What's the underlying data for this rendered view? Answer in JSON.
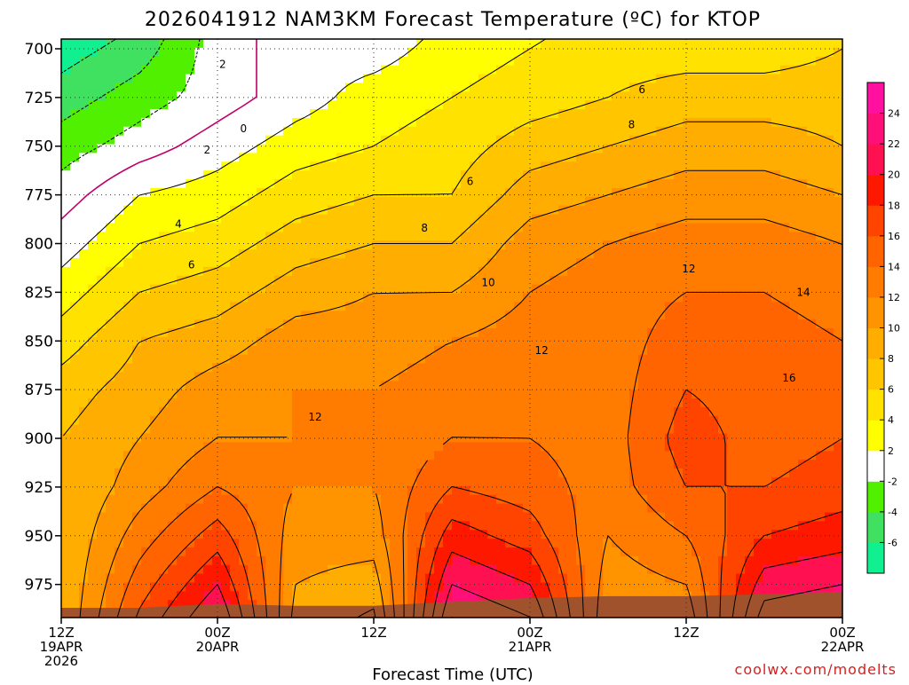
{
  "chart_data": {
    "type": "heatmap",
    "title": "2026041912 NAM3KM Forecast Temperature (ºC) for KTOP",
    "xlabel": "Forecast Time (UTC)",
    "credit": "coolwx.com/modelts",
    "y_ticks": [
      700,
      725,
      750,
      775,
      800,
      825,
      850,
      875,
      900,
      925,
      950,
      975
    ],
    "ylim": [
      695,
      992
    ],
    "y_inverted": true,
    "x_ticks": [
      {
        "hour": 0,
        "lines": [
          "12Z",
          "19APR",
          "2026"
        ]
      },
      {
        "hour": 12,
        "lines": [
          "00Z",
          "20APR"
        ]
      },
      {
        "hour": 24,
        "lines": [
          "12Z"
        ]
      },
      {
        "hour": 36,
        "lines": [
          "00Z",
          "21APR"
        ]
      },
      {
        "hour": 48,
        "lines": [
          "12Z"
        ]
      },
      {
        "hour": 60,
        "lines": [
          "00Z",
          "22APR"
        ]
      }
    ],
    "xlim": [
      0,
      60
    ],
    "grid": true,
    "colorbar_levels": [
      -8,
      -6,
      -4,
      -2,
      2,
      4,
      6,
      8,
      10,
      12,
      14,
      16,
      18,
      20,
      22,
      24,
      26
    ],
    "colorbar_labels": [
      "-6",
      "-4",
      "-2",
      "2",
      "4",
      "6",
      "8",
      "10",
      "12",
      "14",
      "16",
      "18",
      "20",
      "22",
      "24"
    ],
    "colorbar_colors": [
      "#10f090",
      "#40e060",
      "#50f000",
      "#ffffff",
      "#ffff00",
      "#ffe200",
      "#ffc600",
      "#ffad00",
      "#ff9400",
      "#ff7c00",
      "#ff6400",
      "#ff4400",
      "#ff1800",
      "#ff1050",
      "#ff1078",
      "#ff10a0"
    ],
    "contour_labels": [
      {
        "hour": 12.4,
        "p": 708,
        "text": "2"
      },
      {
        "hour": 14.0,
        "p": 741,
        "text": "0"
      },
      {
        "hour": 11.2,
        "p": 752,
        "text": "2"
      },
      {
        "hour": 9.0,
        "p": 790,
        "text": "4"
      },
      {
        "hour": 10.0,
        "p": 811,
        "text": "6"
      },
      {
        "hour": 44.6,
        "p": 721,
        "text": "6"
      },
      {
        "hour": 43.8,
        "p": 739,
        "text": "8"
      },
      {
        "hour": 31.4,
        "p": 768,
        "text": "6"
      },
      {
        "hour": 27.9,
        "p": 792,
        "text": "8"
      },
      {
        "hour": 32.8,
        "p": 820,
        "text": "10"
      },
      {
        "hour": 48.2,
        "p": 813,
        "text": "12"
      },
      {
        "hour": 36.9,
        "p": 855,
        "text": "12"
      },
      {
        "hour": 57.0,
        "p": 825,
        "text": "14"
      },
      {
        "hour": 55.9,
        "p": 869,
        "text": "16"
      },
      {
        "hour": 19.5,
        "p": 889,
        "text": "12"
      }
    ],
    "surface_pressure": [
      [
        0,
        987
      ],
      [
        6,
        987
      ],
      [
        12,
        985
      ],
      [
        18,
        986
      ],
      [
        24,
        986
      ],
      [
        30,
        984
      ],
      [
        36,
        982
      ],
      [
        42,
        981
      ],
      [
        48,
        981
      ],
      [
        54,
        980
      ],
      [
        60,
        979
      ]
    ],
    "temperature_profiles": [
      {
        "hour": 0,
        "levels": [
          [
            700,
            -7
          ],
          [
            725,
            -5
          ],
          [
            750,
            -3
          ],
          [
            775,
            -1
          ],
          [
            800,
            1
          ],
          [
            825,
            3
          ],
          [
            850,
            5
          ],
          [
            875,
            7
          ],
          [
            900,
            8
          ],
          [
            925,
            8
          ],
          [
            950,
            8
          ],
          [
            975,
            8
          ]
        ]
      },
      {
        "hour": 6,
        "levels": [
          [
            700,
            -5
          ],
          [
            725,
            -3
          ],
          [
            750,
            -1
          ],
          [
            775,
            2
          ],
          [
            800,
            4
          ],
          [
            825,
            6
          ],
          [
            850,
            8
          ],
          [
            875,
            9
          ],
          [
            900,
            10
          ],
          [
            925,
            11
          ],
          [
            950,
            13
          ],
          [
            975,
            15
          ]
        ]
      },
      {
        "hour": 12,
        "levels": [
          [
            700,
            -1
          ],
          [
            725,
            -1
          ],
          [
            750,
            1
          ],
          [
            775,
            3
          ],
          [
            800,
            5
          ],
          [
            825,
            7
          ],
          [
            850,
            9
          ],
          [
            875,
            11
          ],
          [
            900,
            12
          ],
          [
            925,
            14
          ],
          [
            950,
            17
          ],
          [
            975,
            20
          ]
        ]
      },
      {
        "hour": 18,
        "levels": [
          [
            700,
            1
          ],
          [
            725,
            1
          ],
          [
            750,
            3
          ],
          [
            775,
            5
          ],
          [
            800,
            7
          ],
          [
            825,
            9
          ],
          [
            850,
            11
          ],
          [
            875,
            12
          ],
          [
            900,
            12
          ],
          [
            925,
            12
          ],
          [
            950,
            11
          ],
          [
            975,
            10
          ]
        ]
      },
      {
        "hour": 24,
        "levels": [
          [
            700,
            1
          ],
          [
            725,
            3
          ],
          [
            750,
            4
          ],
          [
            775,
            6
          ],
          [
            800,
            8
          ],
          [
            825,
            10
          ],
          [
            850,
            11
          ],
          [
            875,
            12
          ],
          [
            900,
            12
          ],
          [
            925,
            12
          ],
          [
            950,
            11
          ],
          [
            975,
            9
          ]
        ]
      },
      {
        "hour": 30,
        "levels": [
          [
            700,
            3
          ],
          [
            725,
            4
          ],
          [
            750,
            5
          ],
          [
            775,
            6
          ],
          [
            800,
            8
          ],
          [
            825,
            10
          ],
          [
            850,
            12
          ],
          [
            875,
            13
          ],
          [
            900,
            14
          ],
          [
            925,
            16
          ],
          [
            950,
            19
          ],
          [
            975,
            22
          ]
        ]
      },
      {
        "hour": 36,
        "levels": [
          [
            700,
            4
          ],
          [
            725,
            5
          ],
          [
            750,
            7
          ],
          [
            775,
            9
          ],
          [
            800,
            11
          ],
          [
            825,
            12
          ],
          [
            850,
            13
          ],
          [
            875,
            13
          ],
          [
            900,
            14
          ],
          [
            925,
            15
          ],
          [
            950,
            17
          ],
          [
            975,
            20
          ]
        ]
      },
      {
        "hour": 42,
        "levels": [
          [
            700,
            5
          ],
          [
            725,
            6
          ],
          [
            750,
            8
          ],
          [
            775,
            10
          ],
          [
            800,
            12
          ],
          [
            825,
            13
          ],
          [
            850,
            13
          ],
          [
            875,
            13
          ],
          [
            900,
            13
          ],
          [
            925,
            13
          ],
          [
            950,
            12
          ],
          [
            975,
            11
          ]
        ]
      },
      {
        "hour": 48,
        "levels": [
          [
            700,
            5
          ],
          [
            725,
            7
          ],
          [
            750,
            9
          ],
          [
            775,
            11
          ],
          [
            800,
            13
          ],
          [
            825,
            14
          ],
          [
            850,
            15
          ],
          [
            875,
            16
          ],
          [
            900,
            17
          ],
          [
            925,
            16
          ],
          [
            950,
            14
          ],
          [
            975,
            12
          ]
        ]
      },
      {
        "hour": 54,
        "levels": [
          [
            700,
            5
          ],
          [
            725,
            7
          ],
          [
            750,
            9
          ],
          [
            775,
            11
          ],
          [
            800,
            13
          ],
          [
            825,
            14
          ],
          [
            850,
            15
          ],
          [
            875,
            15
          ],
          [
            900,
            15
          ],
          [
            925,
            16
          ],
          [
            950,
            18
          ],
          [
            975,
            21
          ]
        ]
      },
      {
        "hour": 60,
        "levels": [
          [
            700,
            6
          ],
          [
            725,
            7
          ],
          [
            750,
            8
          ],
          [
            775,
            10
          ],
          [
            800,
            12
          ],
          [
            825,
            13
          ],
          [
            850,
            14
          ],
          [
            875,
            15
          ],
          [
            900,
            16
          ],
          [
            925,
            17
          ],
          [
            950,
            19
          ],
          [
            975,
            22
          ]
        ]
      }
    ]
  }
}
